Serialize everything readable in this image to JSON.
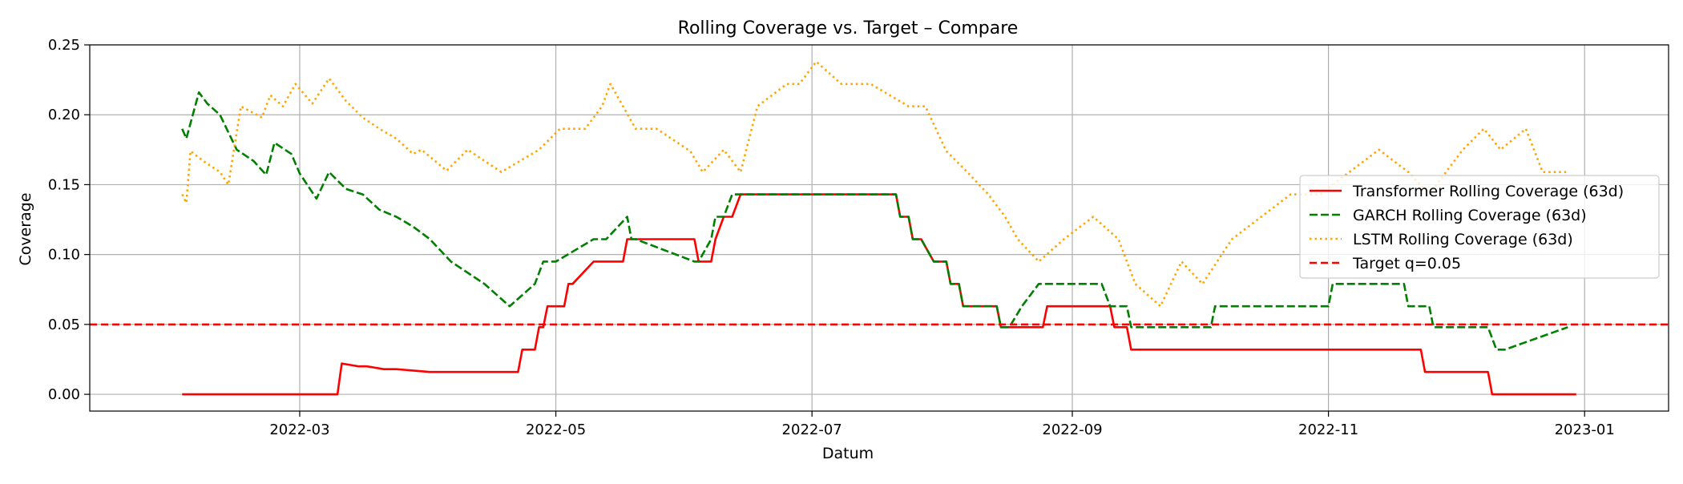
{
  "chart_data": {
    "type": "line",
    "title": "Rolling Coverage vs. Target – Compare",
    "xlabel": "Datum",
    "ylabel": "Coverage",
    "xlim": [
      "2022-01-10",
      "2023-01-21"
    ],
    "ylim": [
      -0.012,
      0.25
    ],
    "x_ticks": [
      "2022-03-01",
      "2022-05-01",
      "2022-07-01",
      "2022-09-01",
      "2022-11-01",
      "2023-01-01"
    ],
    "x_tick_labels": [
      "2022-03",
      "2022-05",
      "2022-07",
      "2022-09",
      "2022-11",
      "2023-01"
    ],
    "y_ticks": [
      0.0,
      0.05,
      0.1,
      0.15,
      0.2,
      0.25
    ],
    "y_tick_labels": [
      "0.00",
      "0.05",
      "0.10",
      "0.15",
      "0.20",
      "0.25"
    ],
    "grid": true,
    "legend_position": "center-right",
    "series": [
      {
        "name": "Transformer Rolling Coverage (63d)",
        "color": "#ff0000",
        "style": "solid",
        "x": [
          "2022-02-01",
          "2022-03-10",
          "2022-03-11",
          "2022-03-13",
          "2022-03-15",
          "2022-03-17",
          "2022-03-19",
          "2022-03-21",
          "2022-03-24",
          "2022-03-28",
          "2022-04-01",
          "2022-04-22",
          "2022-04-23",
          "2022-04-26",
          "2022-04-27",
          "2022-04-28",
          "2022-04-29",
          "2022-05-03",
          "2022-05-04",
          "2022-05-05",
          "2022-05-10",
          "2022-05-17",
          "2022-05-18",
          "2022-06-03",
          "2022-06-04",
          "2022-06-07",
          "2022-06-08",
          "2022-06-10",
          "2022-06-12",
          "2022-06-14",
          "2022-07-21",
          "2022-07-22",
          "2022-07-24",
          "2022-07-25",
          "2022-07-27",
          "2022-07-30",
          "2022-08-02",
          "2022-08-03",
          "2022-08-05",
          "2022-08-06",
          "2022-08-14",
          "2022-08-15",
          "2022-08-25",
          "2022-08-26",
          "2022-09-10",
          "2022-09-11",
          "2022-09-14",
          "2022-09-15",
          "2022-11-23",
          "2022-11-24",
          "2022-12-09",
          "2022-12-10",
          "2022-12-30"
        ],
        "y": [
          0.0,
          0.0,
          0.022,
          0.021,
          0.02,
          0.02,
          0.019,
          0.018,
          0.018,
          0.017,
          0.016,
          0.016,
          0.032,
          0.032,
          0.048,
          0.048,
          0.063,
          0.063,
          0.079,
          0.079,
          0.095,
          0.095,
          0.111,
          0.111,
          0.095,
          0.095,
          0.111,
          0.127,
          0.127,
          0.143,
          0.143,
          0.127,
          0.127,
          0.111,
          0.111,
          0.095,
          0.095,
          0.079,
          0.079,
          0.063,
          0.063,
          0.048,
          0.048,
          0.063,
          0.063,
          0.048,
          0.048,
          0.032,
          0.032,
          0.016,
          0.016,
          0.0,
          0.0
        ]
      },
      {
        "name": "GARCH Rolling Coverage (63d)",
        "color": "#008000",
        "style": "dashed",
        "x": [
          "2022-02-01",
          "2022-02-02",
          "2022-02-05",
          "2022-02-07",
          "2022-02-10",
          "2022-02-14",
          "2022-02-18",
          "2022-02-21",
          "2022-02-23",
          "2022-02-27",
          "2022-03-01",
          "2022-03-05",
          "2022-03-08",
          "2022-03-12",
          "2022-03-16",
          "2022-03-20",
          "2022-03-24",
          "2022-03-28",
          "2022-04-01",
          "2022-04-06",
          "2022-04-14",
          "2022-04-20",
          "2022-04-26",
          "2022-04-28",
          "2022-05-01",
          "2022-05-10",
          "2022-05-13",
          "2022-05-18",
          "2022-05-19",
          "2022-05-20",
          "2022-06-03",
          "2022-06-04",
          "2022-06-07",
          "2022-06-08",
          "2022-06-10",
          "2022-06-12",
          "2022-06-14",
          "2022-07-21",
          "2022-07-22",
          "2022-07-24",
          "2022-07-25",
          "2022-07-27",
          "2022-07-30",
          "2022-08-02",
          "2022-08-03",
          "2022-08-05",
          "2022-08-06",
          "2022-08-14",
          "2022-08-15",
          "2022-08-17",
          "2022-08-20",
          "2022-08-24",
          "2022-09-08",
          "2022-09-10",
          "2022-09-14",
          "2022-09-15",
          "2022-10-04",
          "2022-10-05",
          "2022-11-01",
          "2022-11-02",
          "2022-11-19",
          "2022-11-20",
          "2022-11-25",
          "2022-11-26",
          "2022-12-09",
          "2022-12-11",
          "2022-12-13",
          "2022-12-28"
        ],
        "y": [
          0.19,
          0.183,
          0.216,
          0.208,
          0.2,
          0.175,
          0.167,
          0.157,
          0.18,
          0.172,
          0.158,
          0.14,
          0.159,
          0.147,
          0.143,
          0.132,
          0.127,
          0.12,
          0.111,
          0.095,
          0.079,
          0.063,
          0.079,
          0.095,
          0.095,
          0.111,
          0.111,
          0.127,
          0.111,
          0.111,
          0.095,
          0.095,
          0.111,
          0.127,
          0.127,
          0.143,
          0.143,
          0.143,
          0.127,
          0.127,
          0.111,
          0.111,
          0.095,
          0.095,
          0.079,
          0.079,
          0.063,
          0.063,
          0.048,
          0.048,
          0.063,
          0.079,
          0.079,
          0.063,
          0.063,
          0.048,
          0.048,
          0.063,
          0.063,
          0.079,
          0.079,
          0.063,
          0.063,
          0.048,
          0.048,
          0.032,
          0.032,
          0.048
        ]
      },
      {
        "name": "LSTM Rolling Coverage (63d)",
        "color": "#ffa500",
        "style": "dotted",
        "x": [
          "2022-02-01",
          "2022-02-02",
          "2022-02-03",
          "2022-02-06",
          "2022-02-10",
          "2022-02-12",
          "2022-02-15",
          "2022-02-20",
          "2022-02-22",
          "2022-02-25",
          "2022-02-28",
          "2022-03-04",
          "2022-03-08",
          "2022-03-12",
          "2022-03-16",
          "2022-03-20",
          "2022-03-24",
          "2022-03-28",
          "2022-03-30",
          "2022-04-05",
          "2022-04-10",
          "2022-04-18",
          "2022-04-27",
          "2022-05-02",
          "2022-05-08",
          "2022-05-12",
          "2022-05-14",
          "2022-05-20",
          "2022-05-25",
          "2022-06-02",
          "2022-06-05",
          "2022-06-10",
          "2022-06-14",
          "2022-06-18",
          "2022-06-25",
          "2022-06-28",
          "2022-07-02",
          "2022-07-08",
          "2022-07-15",
          "2022-07-24",
          "2022-07-28",
          "2022-08-02",
          "2022-08-07",
          "2022-08-12",
          "2022-08-16",
          "2022-08-19",
          "2022-08-24",
          "2022-08-30",
          "2022-09-06",
          "2022-09-12",
          "2022-09-16",
          "2022-09-22",
          "2022-09-27",
          "2022-10-02",
          "2022-10-09",
          "2022-10-16",
          "2022-10-23",
          "2022-10-30",
          "2022-11-06",
          "2022-11-13",
          "2022-11-20",
          "2022-11-25",
          "2022-11-29",
          "2022-12-03",
          "2022-12-08",
          "2022-12-12",
          "2022-12-18",
          "2022-12-22",
          "2022-12-28"
        ],
        "y": [
          0.143,
          0.137,
          0.174,
          0.167,
          0.159,
          0.15,
          0.206,
          0.198,
          0.214,
          0.206,
          0.222,
          0.208,
          0.226,
          0.21,
          0.198,
          0.19,
          0.183,
          0.172,
          0.175,
          0.16,
          0.175,
          0.159,
          0.175,
          0.19,
          0.19,
          0.206,
          0.222,
          0.19,
          0.19,
          0.174,
          0.159,
          0.175,
          0.159,
          0.206,
          0.222,
          0.222,
          0.238,
          0.222,
          0.222,
          0.206,
          0.206,
          0.174,
          0.159,
          0.143,
          0.127,
          0.111,
          0.095,
          0.111,
          0.127,
          0.111,
          0.079,
          0.063,
          0.095,
          0.079,
          0.111,
          0.127,
          0.143,
          0.143,
          0.159,
          0.175,
          0.159,
          0.143,
          0.159,
          0.175,
          0.19,
          0.175,
          0.19,
          0.159,
          0.159
        ]
      },
      {
        "name": "Target q=0.05",
        "color": "#ff0000",
        "style": "dashed-line",
        "x": [
          "2022-01-10",
          "2023-01-21"
        ],
        "y": [
          0.05,
          0.05
        ]
      }
    ]
  }
}
